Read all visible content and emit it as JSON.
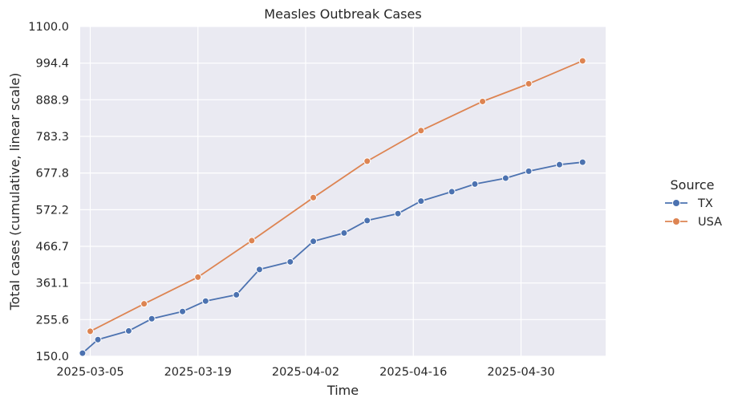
{
  "chart_data": {
    "type": "line",
    "title": "Measles Outbreak Cases",
    "xlabel": "Time",
    "ylabel": "Total cases (cumulative, linear scale)",
    "x_ticks": [
      "2025-03-05",
      "2025-03-19",
      "2025-04-02",
      "2025-04-16",
      "2025-04-30"
    ],
    "y_ticks": [
      "150.0",
      "255.6",
      "361.1",
      "466.7",
      "572.2",
      "677.8",
      "783.3",
      "888.9",
      "994.4",
      "1100.0"
    ],
    "ylim": [
      150,
      1100
    ],
    "xlim": [
      "2025-03-04",
      "2025-05-11"
    ],
    "grid": true,
    "background": "#eaeaf2",
    "legend": {
      "title": "Source",
      "placement": "right"
    },
    "series": [
      {
        "name": "TX",
        "color": "#4c72b0",
        "points": [
          {
            "x": "2025-03-04",
            "y": 159
          },
          {
            "x": "2025-03-06",
            "y": 198
          },
          {
            "x": "2025-03-10",
            "y": 223
          },
          {
            "x": "2025-03-13",
            "y": 258
          },
          {
            "x": "2025-03-17",
            "y": 279
          },
          {
            "x": "2025-03-20",
            "y": 309
          },
          {
            "x": "2025-03-24",
            "y": 327
          },
          {
            "x": "2025-03-27",
            "y": 400
          },
          {
            "x": "2025-03-31",
            "y": 422
          },
          {
            "x": "2025-04-03",
            "y": 481
          },
          {
            "x": "2025-04-07",
            "y": 505
          },
          {
            "x": "2025-04-10",
            "y": 541
          },
          {
            "x": "2025-04-14",
            "y": 561
          },
          {
            "x": "2025-04-17",
            "y": 597
          },
          {
            "x": "2025-04-21",
            "y": 624
          },
          {
            "x": "2025-04-24",
            "y": 646
          },
          {
            "x": "2025-04-28",
            "y": 663
          },
          {
            "x": "2025-05-01",
            "y": 683
          },
          {
            "x": "2025-05-05",
            "y": 702
          },
          {
            "x": "2025-05-08",
            "y": 709
          }
        ]
      },
      {
        "name": "USA",
        "color": "#dd8452",
        "points": [
          {
            "x": "2025-03-05",
            "y": 222
          },
          {
            "x": "2025-03-12",
            "y": 301
          },
          {
            "x": "2025-03-19",
            "y": 378
          },
          {
            "x": "2025-03-26",
            "y": 483
          },
          {
            "x": "2025-04-03",
            "y": 607
          },
          {
            "x": "2025-04-10",
            "y": 712
          },
          {
            "x": "2025-04-17",
            "y": 800
          },
          {
            "x": "2025-04-25",
            "y": 884
          },
          {
            "x": "2025-05-01",
            "y": 935
          },
          {
            "x": "2025-05-08",
            "y": 1001
          }
        ]
      }
    ]
  }
}
